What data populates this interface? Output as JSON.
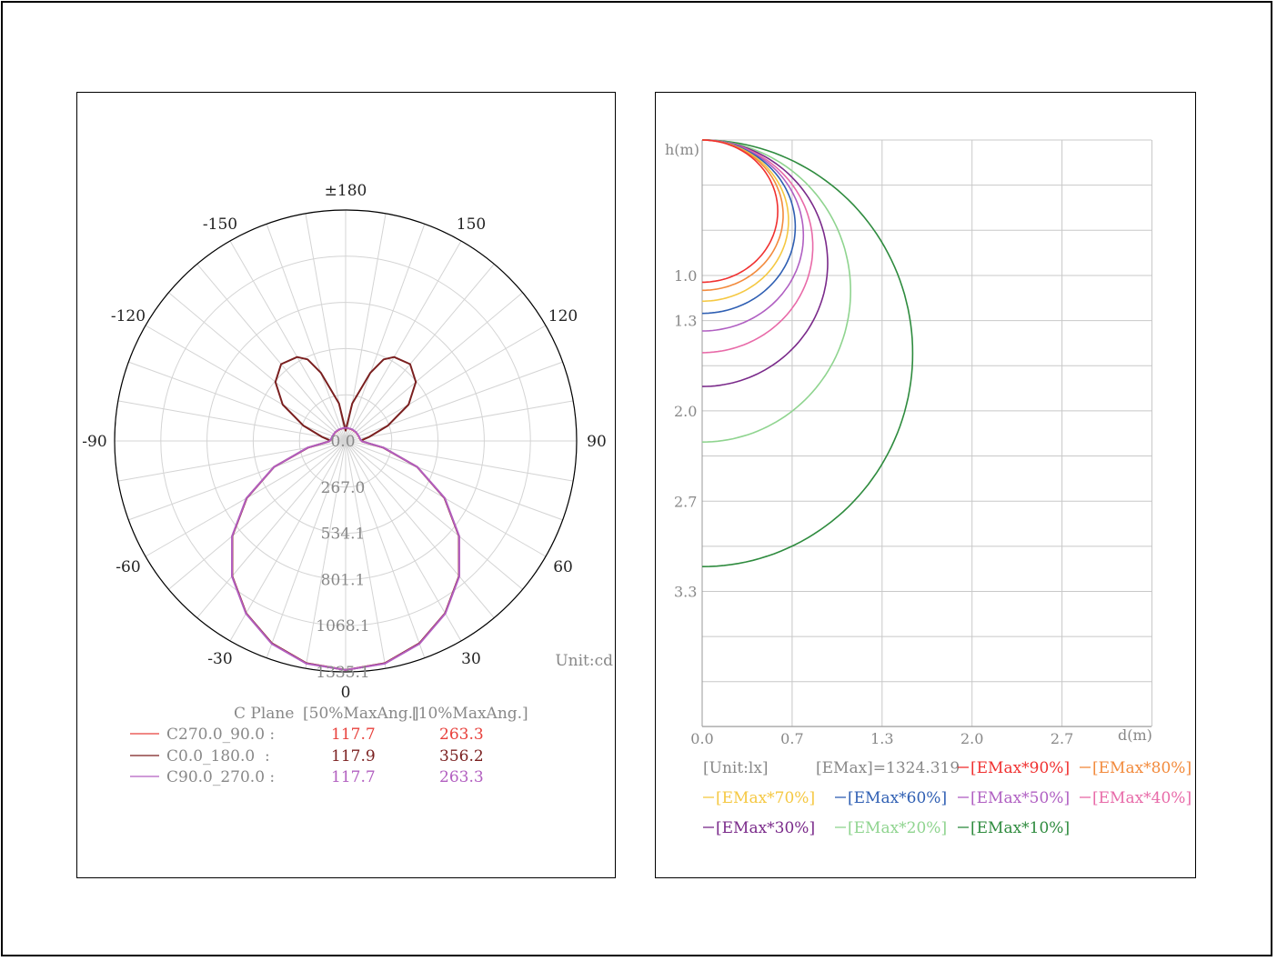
{
  "polar": {
    "unit_label": "Unit:cd",
    "legend": {
      "header": [
        "C Plane",
        "[50%MaxAng.]",
        "[10%MaxAng.]"
      ],
      "rows": [
        {
          "name": "C270.0_90.0 :",
          "half": "117.7",
          "tenth": "263.3",
          "color": "#e8413c"
        },
        {
          "name": "C0.0_180.0  :",
          "half": "117.9",
          "tenth": "356.2",
          "color": "#7a1f1f"
        },
        {
          "name": "C90.0_270.0 :",
          "half": "117.7",
          "tenth": "263.3",
          "color": "#b25fc0"
        }
      ]
    }
  },
  "iso": {
    "y_axis_title": "h(m)",
    "x_axis_title": "d(m)",
    "unit": "[Unit:lx]",
    "emax": "[EMax]=1324.319",
    "legend": [
      {
        "label": "[EMax*90%]",
        "color": "#f03030"
      },
      {
        "label": "[EMax*80%]",
        "color": "#f28a3c"
      },
      {
        "label": "[EMax*70%]",
        "color": "#f5c842"
      },
      {
        "label": "[EMax*60%]",
        "color": "#2f5fb3"
      },
      {
        "label": "[EMax*50%]",
        "color": "#b05fc2"
      },
      {
        "label": "[EMax*40%]",
        "color": "#e86aa8"
      },
      {
        "label": "[EMax*30%]",
        "color": "#7a2a8a"
      },
      {
        "label": "[EMax*20%]",
        "color": "#8fd48f"
      },
      {
        "label": "[EMax*10%]",
        "color": "#2e8b3e"
      }
    ]
  },
  "chart_data": [
    {
      "type": "polar",
      "angle_labels": [
        "±180",
        "150",
        "120",
        "90",
        "60",
        "30",
        "0",
        "-30",
        "-60",
        "-90",
        "-120",
        "-150"
      ],
      "radial_ticks": [
        0.0,
        267.0,
        534.1,
        801.1,
        1068.1,
        1335.1
      ],
      "radial_tick_labels": [
        "0.0",
        "267.0",
        "534.1",
        "801.1",
        "1068.1",
        "1335.1"
      ],
      "rmax": 1335.1,
      "series": [
        {
          "name": "C270.0_90.0",
          "color": "#e8413c",
          "values_deg_cd": [
            [
              0,
              1324
            ],
            [
              10,
              1305
            ],
            [
              20,
              1245
            ],
            [
              30,
              1150
            ],
            [
              40,
              1020
            ],
            [
              50,
              855
            ],
            [
              60,
              660
            ],
            [
              70,
              440
            ],
            [
              80,
              220
            ],
            [
              88,
              95
            ],
            [
              95,
              85
            ],
            [
              110,
              80
            ],
            [
              130,
              78
            ],
            [
              150,
              76
            ],
            [
              170,
              75
            ],
            [
              180,
              75
            ]
          ]
        },
        {
          "name": "C0.0_180.0",
          "color": "#7a1f1f",
          "values_deg_cd": [
            [
              0,
              1324
            ],
            [
              10,
              1305
            ],
            [
              20,
              1245
            ],
            [
              30,
              1150
            ],
            [
              40,
              1020
            ],
            [
              50,
              855
            ],
            [
              60,
              660
            ],
            [
              70,
              440
            ],
            [
              80,
              220
            ],
            [
              88,
              100
            ],
            [
              92,
              90
            ],
            [
              100,
              140
            ],
            [
              110,
              260
            ],
            [
              120,
              420
            ],
            [
              130,
              530
            ],
            [
              140,
              580
            ],
            [
              150,
              560
            ],
            [
              155,
              520
            ],
            [
              160,
              420
            ],
            [
              170,
              220
            ],
            [
              180,
              60
            ]
          ]
        },
        {
          "name": "C90.0_270.0",
          "color": "#b25fc0",
          "values_deg_cd": [
            [
              0,
              1324
            ],
            [
              10,
              1307
            ],
            [
              20,
              1248
            ],
            [
              30,
              1152
            ],
            [
              40,
              1022
            ],
            [
              50,
              857
            ],
            [
              60,
              662
            ],
            [
              70,
              442
            ],
            [
              80,
              222
            ],
            [
              88,
              96
            ],
            [
              95,
              86
            ],
            [
              110,
              81
            ],
            [
              130,
              79
            ],
            [
              150,
              77
            ],
            [
              170,
              76
            ],
            [
              180,
              76
            ]
          ]
        }
      ]
    },
    {
      "type": "line",
      "title": "",
      "xlabel": "d(m)",
      "ylabel": "h(m)",
      "x_tick_labels": [
        "0.0",
        "0.7",
        "1.3",
        "2.0",
        "2.7"
      ],
      "y_tick_labels": [
        "1.0",
        "1.3",
        "2.0",
        "2.7",
        "3.3"
      ],
      "y_tick_values": [
        1.0,
        1.333,
        2.0,
        2.667,
        3.333
      ],
      "xlim": [
        0,
        3.33
      ],
      "ylim": [
        0,
        4.33
      ],
      "grid": true,
      "series": [
        {
          "name": "[EMax*90%]",
          "color": "#f03030",
          "d_max": 0.56,
          "h_bottom": 1.05
        },
        {
          "name": "[EMax*80%]",
          "color": "#f28a3c",
          "d_max": 0.6,
          "h_bottom": 1.11
        },
        {
          "name": "[EMax*70%]",
          "color": "#f5c842",
          "d_max": 0.64,
          "h_bottom": 1.19
        },
        {
          "name": "[EMax*60%]",
          "color": "#2f5fb3",
          "d_max": 0.69,
          "h_bottom": 1.28
        },
        {
          "name": "[EMax*50%]",
          "color": "#b05fc2",
          "d_max": 0.75,
          "h_bottom": 1.41
        },
        {
          "name": "[EMax*40%]",
          "color": "#e86aa8",
          "d_max": 0.82,
          "h_bottom": 1.57
        },
        {
          "name": "[EMax*30%]",
          "color": "#7a2a8a",
          "d_max": 0.93,
          "h_bottom": 1.82
        },
        {
          "name": "[EMax*20%]",
          "color": "#8fd48f",
          "d_max": 1.1,
          "h_bottom": 2.23
        },
        {
          "name": "[EMax*10%]",
          "color": "#2e8b3e",
          "d_max": 1.56,
          "h_bottom": 3.15
        }
      ]
    }
  ]
}
